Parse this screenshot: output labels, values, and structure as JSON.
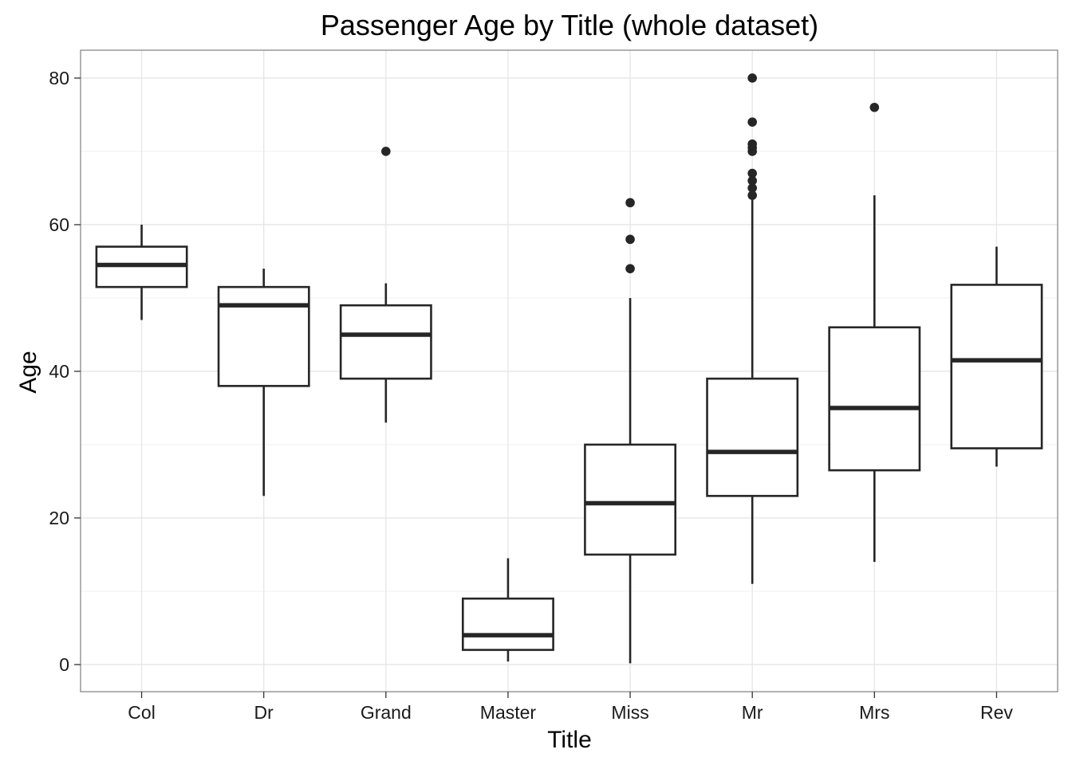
{
  "chart_data": {
    "type": "boxplot",
    "title": "Passenger Age by Title (whole dataset)",
    "xlabel": "Title",
    "ylabel": "Age",
    "ylim": [
      -3.7,
      83.8
    ],
    "yticks": [
      0,
      20,
      40,
      60,
      80
    ],
    "grid": true,
    "legend": "none",
    "categories": [
      "Col",
      "Dr",
      "Grand",
      "Master",
      "Miss",
      "Mr",
      "Mrs",
      "Rev"
    ],
    "boxes": [
      {
        "category": "Col",
        "whisker_low": 47,
        "q1": 51.5,
        "median": 54.5,
        "q3": 57,
        "whisker_high": 60,
        "outliers": []
      },
      {
        "category": "Dr",
        "whisker_low": 23,
        "q1": 38,
        "median": 49,
        "q3": 51.5,
        "whisker_high": 54,
        "outliers": []
      },
      {
        "category": "Grand",
        "whisker_low": 33,
        "q1": 39,
        "median": 45,
        "q3": 49,
        "whisker_high": 52,
        "outliers": [
          70
        ]
      },
      {
        "category": "Master",
        "whisker_low": 0.42,
        "q1": 2,
        "median": 4,
        "q3": 9,
        "whisker_high": 14.5,
        "outliers": []
      },
      {
        "category": "Miss",
        "whisker_low": 0.17,
        "q1": 15,
        "median": 22,
        "q3": 30,
        "whisker_high": 50,
        "outliers": [
          54,
          58,
          63
        ]
      },
      {
        "category": "Mr",
        "whisker_low": 11,
        "q1": 23,
        "median": 29,
        "q3": 39,
        "whisker_high": 63.5,
        "outliers": [
          64,
          65,
          66,
          67,
          70,
          70.5,
          71,
          74,
          80
        ]
      },
      {
        "category": "Mrs",
        "whisker_low": 14,
        "q1": 26.5,
        "median": 35,
        "q3": 46,
        "whisker_high": 64,
        "outliers": [
          76
        ]
      },
      {
        "category": "Rev",
        "whisker_low": 27,
        "q1": 29.5,
        "median": 41.5,
        "q3": 51.8,
        "whisker_high": 57,
        "outliers": []
      }
    ],
    "colors": {
      "box_stroke": "#262626",
      "box_fill": "#ffffff",
      "grid": "#e6e6e6",
      "panel_border": "#7f7f7f"
    }
  }
}
